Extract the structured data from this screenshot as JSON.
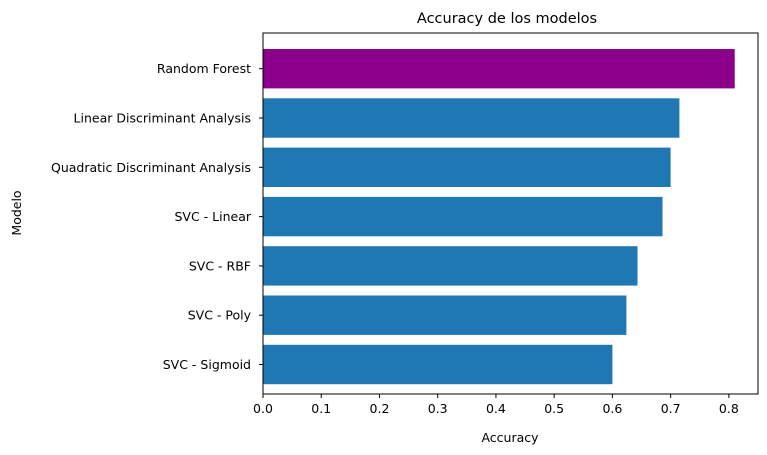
{
  "chart_data": {
    "type": "bar",
    "orientation": "horizontal",
    "title": "Accuracy de los modelos",
    "xlabel": "Accuracy",
    "ylabel": "Modelo",
    "categories": [
      "SVC - Sigmoid",
      "SVC - Poly",
      "SVC - RBF",
      "SVC - Linear",
      "Quadratic Discriminant Analysis",
      "Linear Discriminant Analysis",
      "Random Forest"
    ],
    "values": [
      0.6,
      0.624,
      0.643,
      0.686,
      0.7,
      0.715,
      0.81
    ],
    "bar_colors": [
      "#1f77b4",
      "#1f77b4",
      "#1f77b4",
      "#1f77b4",
      "#1f77b4",
      "#1f77b4",
      "#8b008b"
    ],
    "xlim": [
      0,
      0.85
    ],
    "xticks": [
      "0.0",
      "0.1",
      "0.2",
      "0.3",
      "0.4",
      "0.5",
      "0.6",
      "0.7",
      "0.8"
    ],
    "grid": false,
    "legend": "none"
  }
}
